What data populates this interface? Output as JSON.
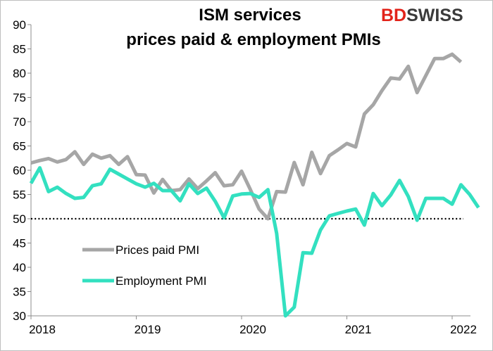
{
  "brand": {
    "prefix": "BD",
    "suffix": "SWISS"
  },
  "chart_data": {
    "type": "line",
    "title_lines": [
      "ISM services",
      "prices paid & employment PMIs"
    ],
    "xlabel": "",
    "ylabel": "",
    "ylim": [
      30,
      90
    ],
    "yticks": [
      30,
      35,
      40,
      45,
      50,
      55,
      60,
      65,
      70,
      75,
      80,
      85,
      90
    ],
    "xlim": [
      "2018-01",
      "2022-02"
    ],
    "xticks": [
      "2018",
      "2019",
      "2020",
      "2021",
      "2022"
    ],
    "grid": false,
    "reference_line": {
      "y": 50,
      "style": "dotted",
      "color": "#000000"
    },
    "legend_position": "lower-left",
    "series": [
      {
        "name": "Prices paid PMI",
        "color": "#a6a6a6",
        "points": [
          [
            "2018-01",
            61.5
          ],
          [
            "2018-02",
            62.0
          ],
          [
            "2018-03",
            62.4
          ],
          [
            "2018-04",
            61.7
          ],
          [
            "2018-05",
            62.2
          ],
          [
            "2018-06",
            63.8
          ],
          [
            "2018-07",
            61.2
          ],
          [
            "2018-08",
            63.3
          ],
          [
            "2018-09",
            62.5
          ],
          [
            "2018-10",
            63.0
          ],
          [
            "2018-11",
            61.2
          ],
          [
            "2018-12",
            62.8
          ],
          [
            "2019-01",
            59.1
          ],
          [
            "2019-02",
            59.0
          ],
          [
            "2019-03",
            55.3
          ],
          [
            "2019-04",
            58.1
          ],
          [
            "2019-05",
            55.8
          ],
          [
            "2019-06",
            56.0
          ],
          [
            "2019-07",
            58.2
          ],
          [
            "2019-08",
            56.2
          ],
          [
            "2019-09",
            57.8
          ],
          [
            "2019-10",
            59.5
          ],
          [
            "2019-11",
            56.8
          ],
          [
            "2019-12",
            57.0
          ],
          [
            "2020-01",
            59.8
          ],
          [
            "2020-02",
            56.0
          ],
          [
            "2020-03",
            52.0
          ],
          [
            "2020-04",
            50.0
          ],
          [
            "2020-05",
            55.6
          ],
          [
            "2020-06",
            55.5
          ],
          [
            "2020-07",
            61.6
          ],
          [
            "2020-08",
            57.0
          ],
          [
            "2020-09",
            63.7
          ],
          [
            "2020-10",
            59.3
          ],
          [
            "2020-11",
            63.0
          ],
          [
            "2020-12",
            64.2
          ],
          [
            "2021-01",
            65.5
          ],
          [
            "2021-02",
            64.8
          ],
          [
            "2021-03",
            71.6
          ],
          [
            "2021-04",
            73.5
          ],
          [
            "2021-05",
            76.4
          ],
          [
            "2021-06",
            79.0
          ],
          [
            "2021-07",
            78.8
          ],
          [
            "2021-08",
            81.4
          ],
          [
            "2021-09",
            76.0
          ],
          [
            "2021-10",
            79.5
          ],
          [
            "2021-11",
            83.0
          ],
          [
            "2021-12",
            83.0
          ],
          [
            "2022-01",
            83.9
          ],
          [
            "2022-02",
            82.3
          ]
        ]
      },
      {
        "name": "Employment PMI",
        "color": "#33e0c0",
        "points": [
          [
            "2018-01",
            57.3
          ],
          [
            "2018-02",
            60.5
          ],
          [
            "2018-03",
            55.6
          ],
          [
            "2018-04",
            56.5
          ],
          [
            "2018-05",
            55.2
          ],
          [
            "2018-06",
            54.2
          ],
          [
            "2018-07",
            54.4
          ],
          [
            "2018-08",
            56.8
          ],
          [
            "2018-09",
            57.2
          ],
          [
            "2018-10",
            60.2
          ],
          [
            "2018-11",
            59.2
          ],
          [
            "2018-12",
            58.2
          ],
          [
            "2019-01",
            57.2
          ],
          [
            "2019-02",
            56.5
          ],
          [
            "2019-03",
            57.3
          ],
          [
            "2019-04",
            55.8
          ],
          [
            "2019-05",
            55.8
          ],
          [
            "2019-06",
            53.7
          ],
          [
            "2019-07",
            57.2
          ],
          [
            "2019-08",
            55.2
          ],
          [
            "2019-09",
            56.3
          ],
          [
            "2019-10",
            53.6
          ],
          [
            "2019-11",
            50.2
          ],
          [
            "2019-12",
            54.7
          ],
          [
            "2020-01",
            55.1
          ],
          [
            "2020-02",
            55.2
          ],
          [
            "2020-03",
            54.4
          ],
          [
            "2020-04",
            56.0
          ],
          [
            "2020-05",
            47.0
          ],
          [
            "2020-06",
            30.0
          ],
          [
            "2020-07",
            31.8
          ],
          [
            "2020-08",
            43.0
          ],
          [
            "2020-09",
            42.9
          ],
          [
            "2020-10",
            47.7
          ],
          [
            "2020-11",
            50.6
          ],
          [
            "2020-12",
            51.1
          ],
          [
            "2021-01",
            51.6
          ],
          [
            "2021-02",
            52.0
          ],
          [
            "2021-03",
            48.7
          ],
          [
            "2021-04",
            55.2
          ],
          [
            "2021-05",
            52.7
          ],
          [
            "2021-06",
            54.9
          ],
          [
            "2021-07",
            57.9
          ],
          [
            "2021-08",
            54.6
          ],
          [
            "2021-09",
            49.7
          ],
          [
            "2021-10",
            54.2
          ],
          [
            "2021-11",
            54.2
          ],
          [
            "2021-12",
            54.2
          ],
          [
            "2022-01",
            53.0
          ],
          [
            "2022-02",
            57.0
          ],
          [
            "2022-03",
            55.0
          ],
          [
            "2022-04",
            52.3
          ]
        ]
      }
    ]
  }
}
